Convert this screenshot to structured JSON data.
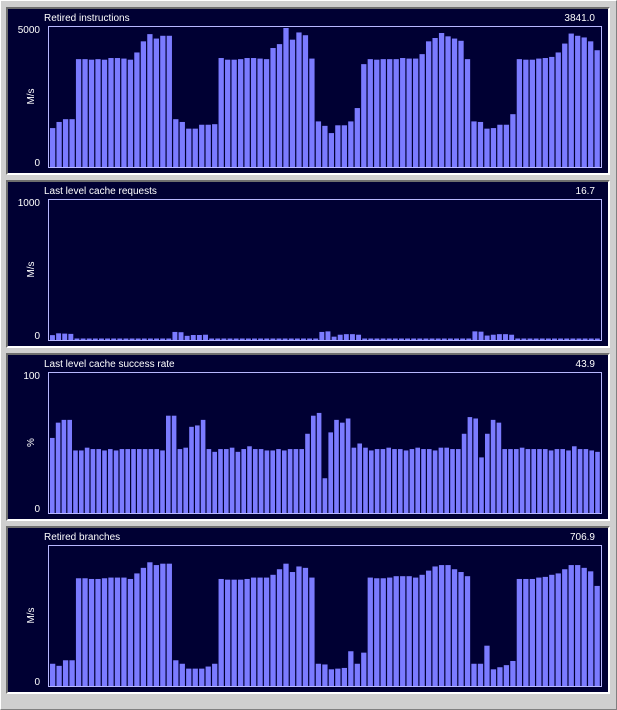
{
  "colors": {
    "panel_background": "#000033",
    "plot_frame": "#b8b8ff",
    "bar_fill": "#7b7bff",
    "text": "#ffffff"
  },
  "chart_data": [
    {
      "type": "bar",
      "title": "Retired instructions",
      "current_value": "3841.0",
      "ylabel": "M/s",
      "ylim": [
        0,
        5000
      ],
      "yticks": [
        "5000",
        "0"
      ],
      "grid": false,
      "values": [
        1400,
        1620,
        1720,
        1720,
        3880,
        3880,
        3860,
        3880,
        3860,
        3920,
        3920,
        3900,
        3860,
        4120,
        4520,
        4780,
        4620,
        4720,
        4720,
        1720,
        1620,
        1380,
        1380,
        1520,
        1520,
        1540,
        3920,
        3860,
        3860,
        3880,
        3920,
        3920,
        3900,
        3880,
        4280,
        4420,
        5140,
        4580,
        4840,
        4740,
        3900,
        1640,
        1480,
        1220,
        1500,
        1500,
        1640,
        2120,
        3700,
        3880,
        3860,
        3880,
        3880,
        3880,
        3920,
        3900,
        3900,
        4060,
        4520,
        4640,
        4820,
        4700,
        4620,
        4540,
        3880,
        1640,
        1620,
        1380,
        1400,
        1520,
        1520,
        1900,
        3880,
        3860,
        3860,
        3900,
        3920,
        3960,
        4120,
        4440,
        4800,
        4720,
        4660,
        4520,
        4200
      ]
    },
    {
      "type": "bar",
      "title": "Last level cache requests",
      "current_value": "16.7",
      "ylabel": "M/s",
      "ylim": [
        0,
        1000
      ],
      "yticks": [
        "1000",
        "0"
      ],
      "grid": false,
      "values": [
        35,
        48,
        46,
        44,
        10,
        10,
        10,
        10,
        10,
        10,
        10,
        10,
        10,
        10,
        10,
        10,
        10,
        10,
        10,
        10,
        58,
        56,
        30,
        36,
        36,
        38,
        10,
        10,
        10,
        10,
        10,
        10,
        10,
        10,
        10,
        10,
        10,
        10,
        10,
        10,
        10,
        10,
        10,
        10,
        58,
        62,
        24,
        38,
        42,
        42,
        38,
        10,
        10,
        10,
        10,
        10,
        10,
        10,
        10,
        10,
        10,
        10,
        10,
        10,
        10,
        10,
        10,
        10,
        10,
        62,
        60,
        32,
        38,
        42,
        42,
        38,
        10,
        10,
        10,
        10,
        10,
        10,
        10,
        10,
        10,
        10,
        10,
        10,
        10,
        10
      ]
    },
    {
      "type": "bar",
      "title": "Last level cache success rate",
      "current_value": "43.9",
      "ylabel": "%",
      "ylim": [
        0,
        100
      ],
      "yticks": [
        "100",
        "0"
      ],
      "grid": false,
      "values": [
        54,
        65,
        67,
        67,
        45,
        45,
        47,
        46,
        46,
        45,
        46,
        45,
        46,
        46,
        46,
        46,
        46,
        46,
        46,
        45,
        70,
        70,
        46,
        47,
        62,
        63,
        67,
        46,
        44,
        46,
        46,
        47,
        44,
        46,
        48,
        46,
        46,
        45,
        45,
        46,
        45,
        46,
        46,
        46,
        57,
        70,
        72,
        25,
        58,
        67,
        65,
        68,
        47,
        50,
        47,
        45,
        46,
        46,
        47,
        46,
        46,
        45,
        46,
        47,
        46,
        46,
        45,
        47,
        47,
        46,
        46,
        57,
        69,
        68,
        40,
        57,
        67,
        65,
        46,
        46,
        46,
        47,
        46,
        46,
        46,
        46,
        45,
        46,
        46,
        45,
        48,
        46,
        46,
        45,
        44
      ]
    },
    {
      "type": "bar",
      "title": "Retired branches",
      "current_value": "706.9",
      "ylabel": "M/s",
      "ylim": [
        0,
        1000
      ],
      "yticks": [
        "",
        "0"
      ],
      "grid": false,
      "values": [
        160,
        145,
        185,
        185,
        775,
        775,
        770,
        770,
        775,
        780,
        780,
        780,
        770,
        810,
        850,
        890,
        870,
        880,
        880,
        185,
        160,
        125,
        125,
        125,
        140,
        160,
        770,
        765,
        765,
        765,
        770,
        780,
        780,
        780,
        800,
        840,
        880,
        820,
        860,
        850,
        780,
        160,
        155,
        120,
        125,
        130,
        250,
        160,
        240,
        780,
        775,
        775,
        780,
        790,
        790,
        790,
        780,
        800,
        830,
        860,
        870,
        870,
        840,
        820,
        790,
        160,
        160,
        290,
        120,
        135,
        150,
        180,
        770,
        770,
        770,
        780,
        785,
        800,
        810,
        840,
        870,
        870,
        850,
        825,
        720
      ]
    }
  ]
}
